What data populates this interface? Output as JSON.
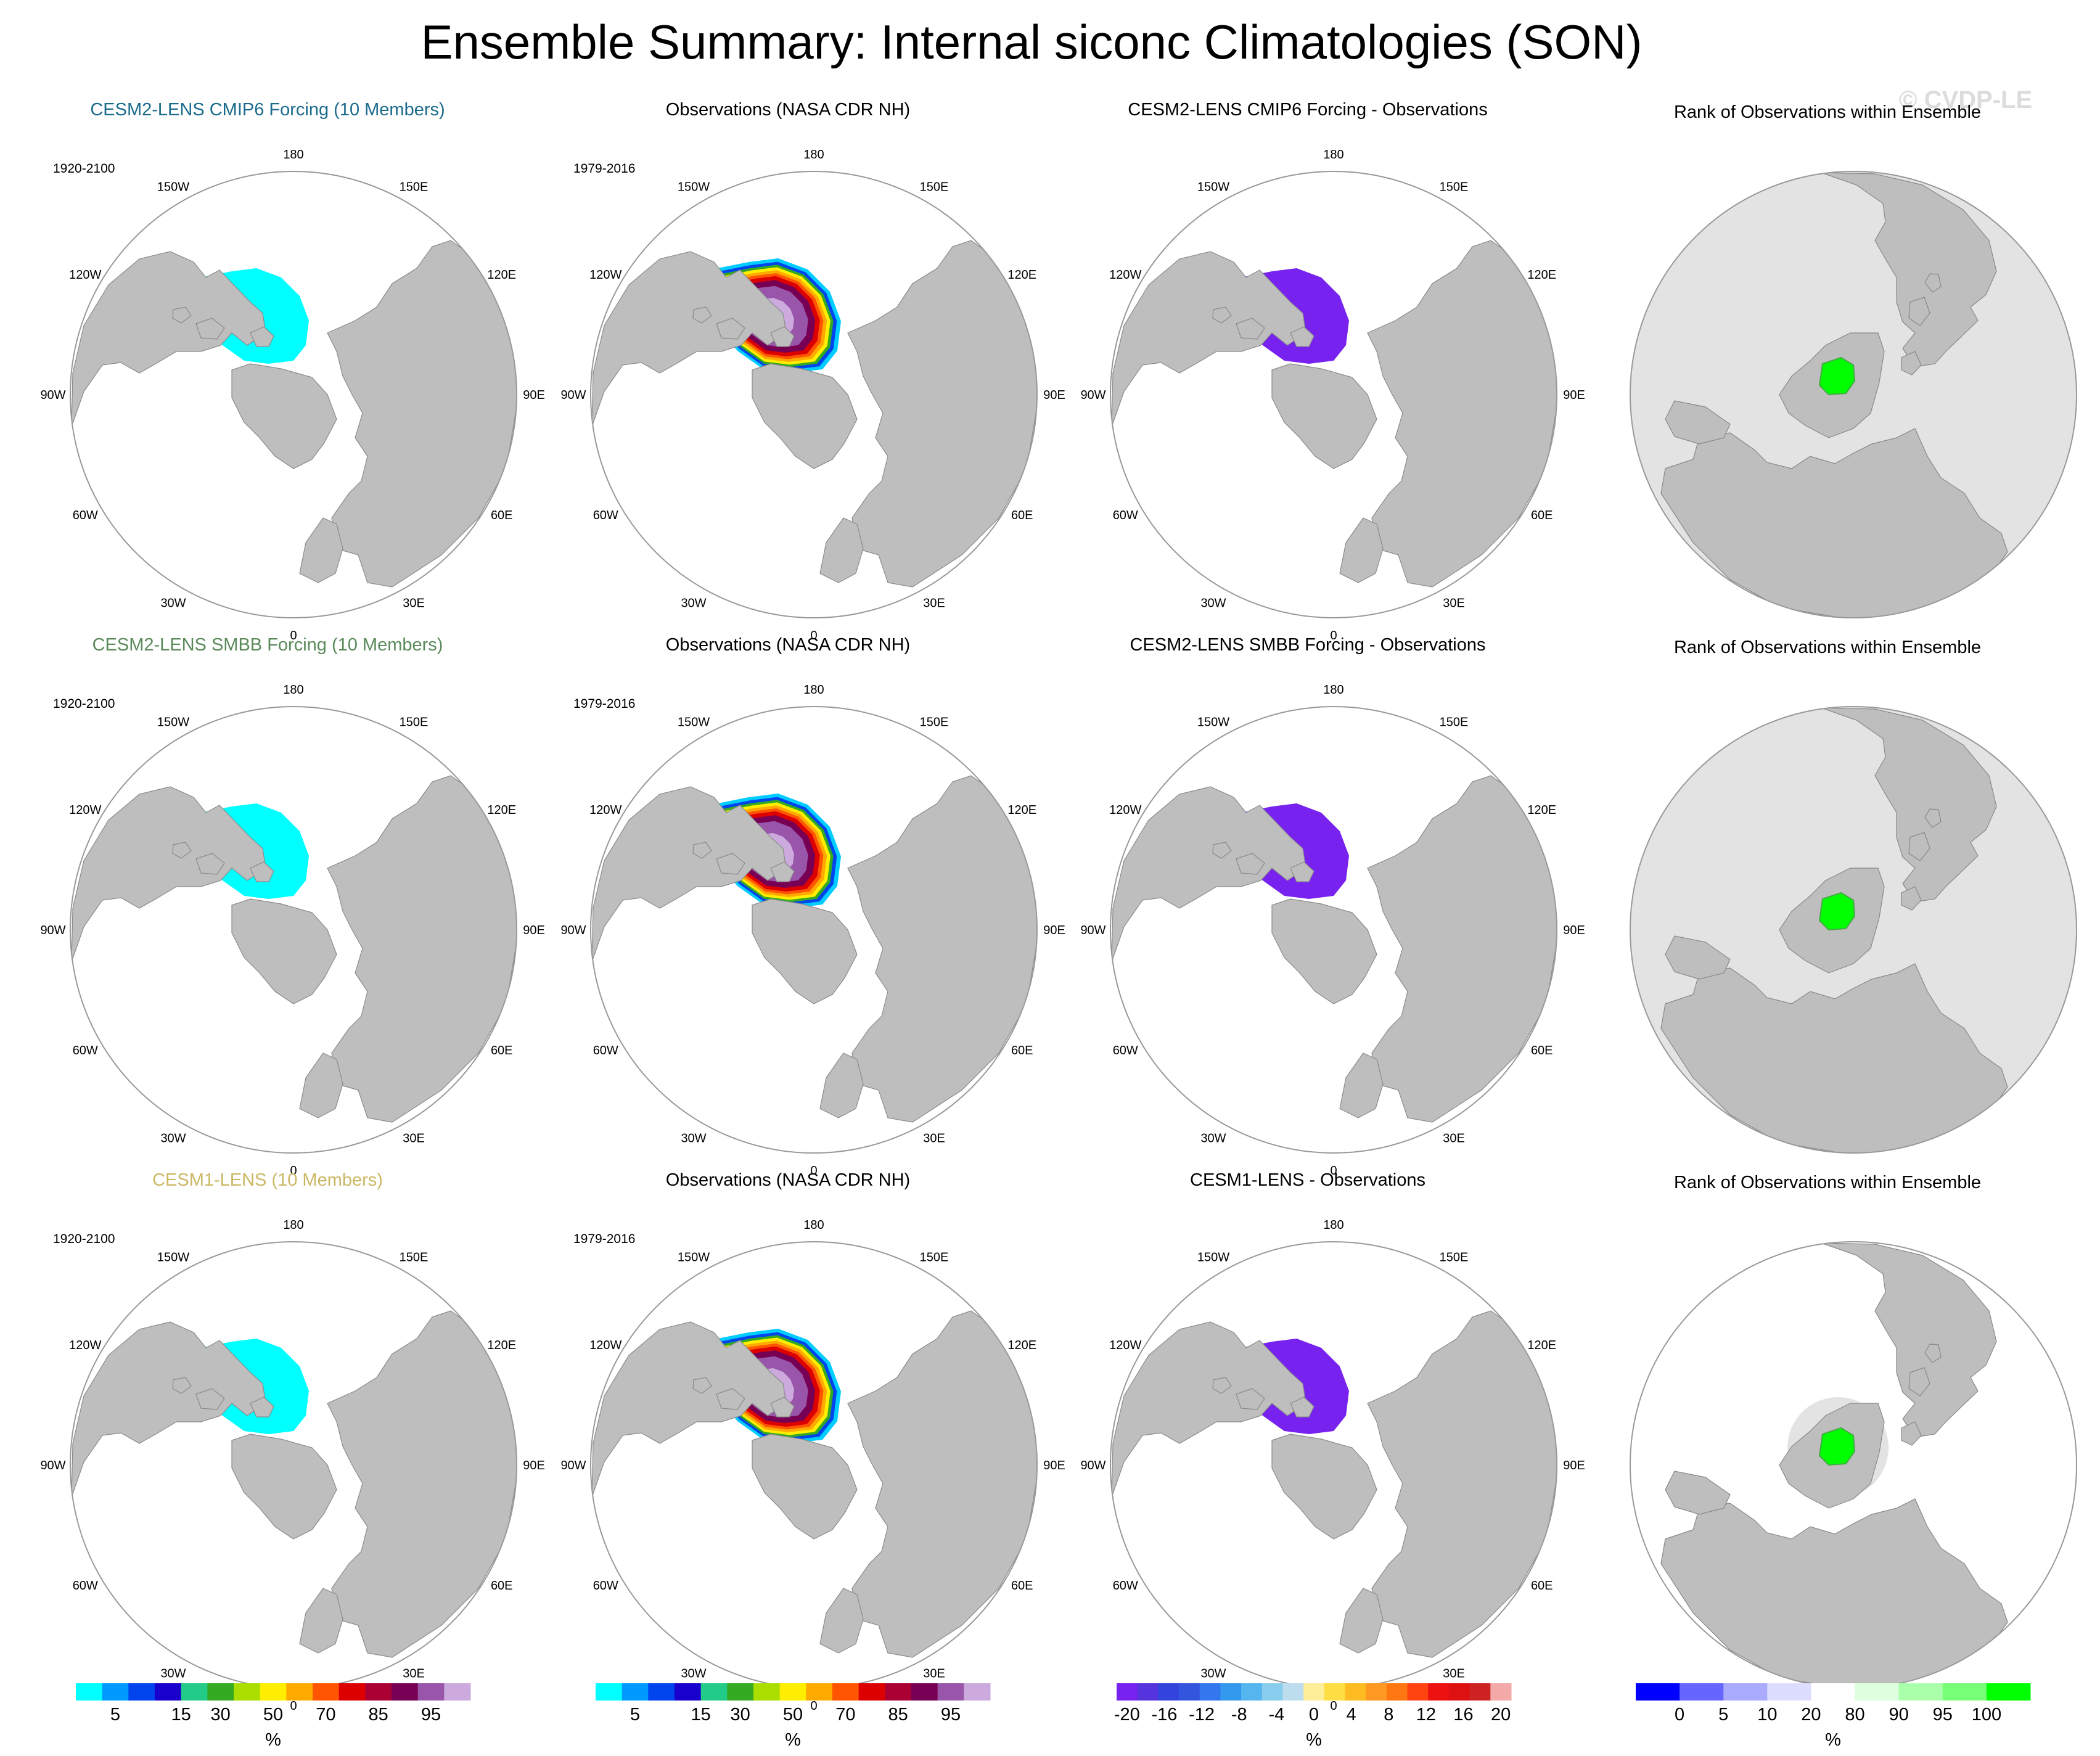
{
  "title": "Ensemble Summary: Internal siconc Climatologies (SON)",
  "watermark": "© CVDP-LE",
  "lon_labels": [
    "180",
    "150E",
    "120E",
    "90E",
    "60E",
    "30E",
    "0",
    "30W",
    "60W",
    "90W",
    "120W",
    "150W"
  ],
  "rows": [
    {
      "model_title": "CESM2-LENS CMIP6 Forcing (10 Members)",
      "model_color": "#1b6b8c",
      "model_period": "1920-2100",
      "obs_title": "Observations (NASA CDR NH)",
      "obs_period": "1979-2016",
      "diff_title": "CESM2-LENS CMIP6 Forcing - Observations",
      "rank_title": "Rank of Observations within Ensemble",
      "rank_background": "full"
    },
    {
      "model_title": "CESM2-LENS SMBB Forcing (10 Members)",
      "model_color": "#5a8a5a",
      "model_period": "1920-2100",
      "obs_title": "Observations (NASA CDR NH)",
      "obs_period": "1979-2016",
      "diff_title": "CESM2-LENS SMBB Forcing - Observations",
      "rank_title": "Rank of Observations within Ensemble",
      "rank_background": "full"
    },
    {
      "model_title": "CESM1-LENS (10 Members)",
      "model_color": "#cbb865",
      "model_period": "1920-2100",
      "obs_title": "Observations (NASA CDR NH)",
      "obs_period": "1979-2016",
      "diff_title": "CESM1-LENS - Observations",
      "rank_title": "Rank of Observations within Ensemble",
      "rank_background": "partial"
    }
  ],
  "colorbars": {
    "concentration": {
      "unit": "%",
      "labels": [
        "5",
        "15",
        "30",
        "50",
        "70",
        "85",
        "95"
      ],
      "colors": [
        "#00ffff",
        "#0099ff",
        "#0044ee",
        "#1a00cc",
        "#22cc88",
        "#33aa22",
        "#aadd00",
        "#ffee00",
        "#ffaa00",
        "#ff5500",
        "#dd0000",
        "#aa0033",
        "#770055",
        "#9955aa",
        "#ccaadd"
      ]
    },
    "difference": {
      "unit": "%",
      "labels": [
        "-20",
        "-16",
        "-12",
        "-8",
        "-4",
        "0",
        "4",
        "8",
        "12",
        "16",
        "20"
      ],
      "colors": [
        "#7722ee",
        "#5533dd",
        "#3344dd",
        "#3355dd",
        "#3377ee",
        "#3399ee",
        "#55b5ee",
        "#88ccee",
        "#bbddee",
        "#ffee99",
        "#ffdd44",
        "#ffbb22",
        "#ff9922",
        "#ff7711",
        "#ff4411",
        "#ee1111",
        "#dd1111",
        "#cc2222",
        "#f4a9a9"
      ]
    },
    "rank": {
      "unit": "%",
      "labels": [
        "0",
        "5",
        "10",
        "20",
        "80",
        "90",
        "95",
        "100"
      ],
      "colors": [
        "#0000ff",
        "#6666ff",
        "#aaaaff",
        "#ddddff",
        "#ffffff",
        "#ddffdd",
        "#aaffaa",
        "#77ff77",
        "#00ff00"
      ]
    }
  }
}
